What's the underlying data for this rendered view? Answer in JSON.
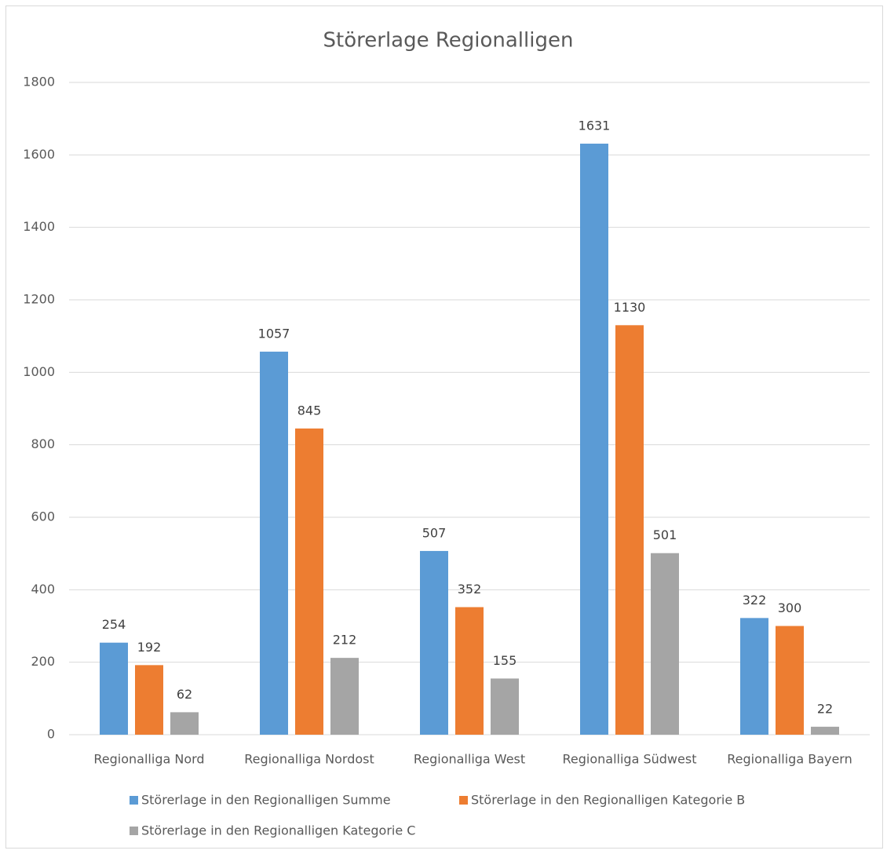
{
  "chart_data": {
    "type": "bar",
    "title": "Störerlage Regionalligen",
    "categories": [
      "Regionalliga Nord",
      "Regionalliga Nordost",
      "Regionalliga West",
      "Regionalliga Südwest",
      "Regionalliga Bayern"
    ],
    "series": [
      {
        "name": "Störerlage in den Regionalligen Summe",
        "color": "#5b9bd5",
        "values": [
          254,
          1057,
          507,
          1631,
          322
        ]
      },
      {
        "name": "Störerlage in den Regionalligen Kategorie B",
        "color": "#ed7d31",
        "values": [
          192,
          845,
          352,
          1130,
          300
        ]
      },
      {
        "name": "Störerlage in den Regionalligen Kategorie C",
        "color": "#a5a5a5",
        "values": [
          62,
          212,
          155,
          501,
          22
        ]
      }
    ],
    "ylim": [
      0,
      1800
    ],
    "yticks": [
      0,
      200,
      400,
      600,
      800,
      1000,
      1200,
      1400,
      1600,
      1800
    ],
    "grid": true,
    "legend": "bottom"
  }
}
